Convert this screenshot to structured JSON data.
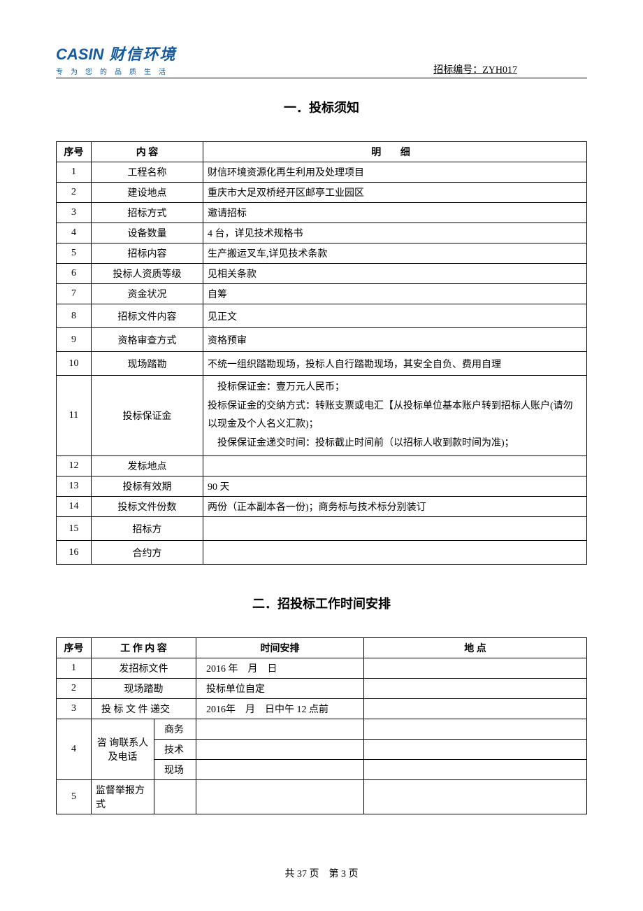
{
  "header": {
    "logo_en": "CASIN",
    "logo_cn": "财信环境",
    "logo_sub": "专为您的品质生活",
    "doc_number_label": "招标编号：",
    "doc_number_value": "ZYH017"
  },
  "section1": {
    "title": "一．投标须知",
    "columns": {
      "seq": "序号",
      "label": "内 容",
      "detail": "明 细"
    },
    "rows": [
      {
        "seq": "1",
        "label": "工程名称",
        "detail": "财信环境资源化再生利用及处理项目"
      },
      {
        "seq": "2",
        "label": "建设地点",
        "detail": "重庆市大足双桥经开区邮亭工业园区"
      },
      {
        "seq": "3",
        "label": "招标方式",
        "detail": "邀请招标"
      },
      {
        "seq": "4",
        "label": "设备数量",
        "detail": "4 台，详见技术规格书"
      },
      {
        "seq": "5",
        "label": "招标内容",
        "detail": "生产搬运叉车,详见技术条款"
      },
      {
        "seq": "6",
        "label": "投标人资质等级",
        "detail": "见相关条款"
      },
      {
        "seq": "7",
        "label": "资金状况",
        "detail": "自筹"
      },
      {
        "seq": "8",
        "label": "招标文件内容",
        "detail": "见正文"
      },
      {
        "seq": "9",
        "label": "资格审查方式",
        "detail": "资格预审"
      },
      {
        "seq": "10",
        "label": "现场踏勘",
        "detail": "不统一组织踏勘现场，投标人自行踏勘现场，其安全自负、费用自理"
      },
      {
        "seq": "11",
        "label": "投标保证金",
        "detail": "投标保证金：壹万元人民币；\n投标保证金的交纳方式：转账支票或电汇【从投标单位基本账户转到招标人账户(请勿以现金及个人名义汇款)；\n投保保证金递交时间：投标截止时间前（以招标人收到款时间为准)；"
      },
      {
        "seq": "12",
        "label": "发标地点",
        "detail": ""
      },
      {
        "seq": "13",
        "label": "投标有效期",
        "detail": "90 天"
      },
      {
        "seq": "14",
        "label": "投标文件份数",
        "detail": "两份（正本副本各一份)；商务标与技术标分别装订"
      },
      {
        "seq": "15",
        "label": "招标方",
        "detail": ""
      },
      {
        "seq": "16",
        "label": "合约方",
        "detail": ""
      }
    ]
  },
  "section2": {
    "title": "二．招投标工作时间安排",
    "columns": {
      "seq": "序号",
      "work": "工 作 内 容",
      "time": "时间安排",
      "place": "地 点"
    },
    "rows": {
      "r1": {
        "seq": "1",
        "work": "发招标文件",
        "time": "2016 年　月　日",
        "place": ""
      },
      "r2": {
        "seq": "2",
        "work": "现场踏勘",
        "time": "投标单位自定",
        "place": ""
      },
      "r3": {
        "seq": "3",
        "work": "投 标 文 件 递交",
        "time": "2016年　月　日中午 12 点前",
        "place": ""
      },
      "r4": {
        "seq": "4",
        "work": "咨 询联系人及电话",
        "subs": [
          {
            "label": "商务",
            "time": "",
            "place": ""
          },
          {
            "label": "技术",
            "time": "",
            "place": ""
          },
          {
            "label": "现场",
            "time": "",
            "place": ""
          }
        ]
      },
      "r5": {
        "seq": "5",
        "work": "监督举报方式",
        "time": "",
        "place": ""
      }
    }
  },
  "footer": {
    "total_pages": "37",
    "current_page": "3",
    "text_prefix": "共 ",
    "text_mid": " 页　第 ",
    "text_suffix": " 页"
  },
  "style": {
    "accent_color": "#165a9e",
    "text_color": "#000000",
    "background": "#ffffff",
    "border_color": "#000000",
    "body_font": "SimSun",
    "base_fontsize_pt": 10.5,
    "title_fontsize_pt": 14
  }
}
